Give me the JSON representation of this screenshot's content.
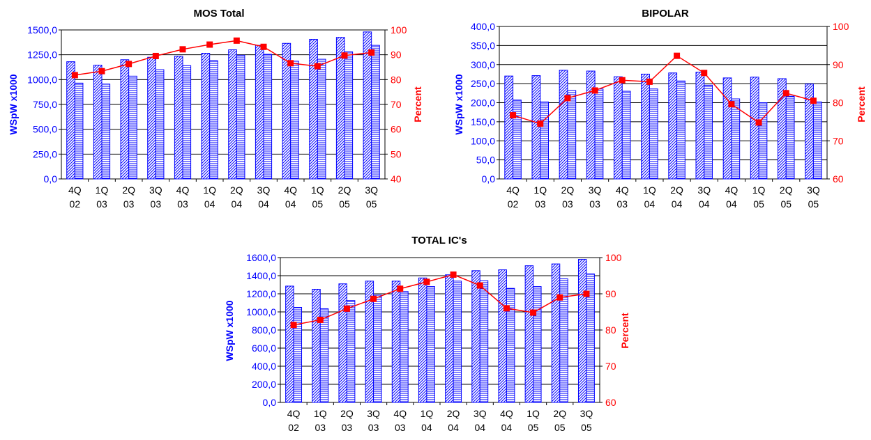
{
  "chart_data": [
    {
      "type": "bar",
      "title": "MOS Total",
      "ylabel": "WSpW x1000",
      "y2label": "Percent",
      "ylim": [
        0,
        1500
      ],
      "y2lim": [
        40,
        100
      ],
      "yticks": [
        "0,0",
        "250,0",
        "500,0",
        "750,0",
        "1000,0",
        "1250,0",
        "1500,0"
      ],
      "y2ticks": [
        "40",
        "50",
        "60",
        "70",
        "80",
        "90",
        "100"
      ],
      "categories": [
        [
          "4Q",
          "02"
        ],
        [
          "1Q",
          "03"
        ],
        [
          "2Q",
          "03"
        ],
        [
          "3Q",
          "03"
        ],
        [
          "4Q",
          "03"
        ],
        [
          "1Q",
          "04"
        ],
        [
          "2Q",
          "04"
        ],
        [
          "3Q",
          "04"
        ],
        [
          "4Q",
          "04"
        ],
        [
          "1Q",
          "05"
        ],
        [
          "2Q",
          "05"
        ],
        [
          "3Q",
          "05"
        ]
      ],
      "series": [
        {
          "kind": "bar",
          "pattern": "diagonal",
          "values": [
            1180,
            1145,
            1200,
            1225,
            1235,
            1265,
            1300,
            1345,
            1365,
            1405,
            1425,
            1480
          ]
        },
        {
          "kind": "bar",
          "pattern": "horizontal",
          "values": [
            965,
            955,
            1035,
            1100,
            1140,
            1190,
            1245,
            1255,
            1185,
            1205,
            1280,
            1345
          ]
        },
        {
          "kind": "line",
          "axis": "right",
          "values": [
            81.8,
            83.4,
            86.3,
            89.5,
            92.2,
            94.1,
            95.7,
            93.2,
            86.6,
            85.4,
            89.7,
            90.9
          ]
        }
      ],
      "grid": true,
      "colors": {
        "bar": "#0000ff",
        "line": "#ff0000"
      }
    },
    {
      "type": "bar",
      "title": "BIPOLAR",
      "ylabel": "WSpW x1000",
      "y2label": "Percent",
      "ylim": [
        0,
        400
      ],
      "y2lim": [
        60,
        100
      ],
      "yticks": [
        "0,0",
        "50,0",
        "100,0",
        "150,0",
        "200,0",
        "250,0",
        "300,0",
        "350,0",
        "400,0"
      ],
      "y2ticks": [
        "60",
        "70",
        "80",
        "90",
        "100"
      ],
      "categories": [
        [
          "4Q",
          "02"
        ],
        [
          "1Q",
          "03"
        ],
        [
          "2Q",
          "03"
        ],
        [
          "3Q",
          "03"
        ],
        [
          "4Q",
          "03"
        ],
        [
          "1Q",
          "04"
        ],
        [
          "2Q",
          "04"
        ],
        [
          "3Q",
          "04"
        ],
        [
          "4Q",
          "04"
        ],
        [
          "1Q",
          "05"
        ],
        [
          "2Q",
          "05"
        ],
        [
          "3Q",
          "05"
        ]
      ],
      "series": [
        {
          "kind": "bar",
          "pattern": "diagonal",
          "values": [
            270,
            271,
            285,
            283,
            268,
            275,
            278,
            280,
            265,
            267,
            263,
            249
          ]
        },
        {
          "kind": "bar",
          "pattern": "horizontal",
          "values": [
            207,
            202,
            232,
            236,
            230,
            236,
            257,
            246,
            210,
            200,
            217,
            202
          ]
        },
        {
          "kind": "line",
          "axis": "right",
          "values": [
            76.7,
            74.5,
            81.2,
            83.2,
            85.9,
            85.5,
            92.3,
            87.8,
            79.6,
            74.8,
            82.5,
            80.5
          ]
        }
      ],
      "grid": true,
      "colors": {
        "bar": "#0000ff",
        "line": "#ff0000"
      }
    },
    {
      "type": "bar",
      "title": "TOTAL IC's",
      "ylabel": "WSpW x1000",
      "y2label": "Percent",
      "ylim": [
        0,
        1600
      ],
      "y2lim": [
        60,
        100
      ],
      "yticks": [
        "0,0",
        "200,0",
        "400,0",
        "600,0",
        "800,0",
        "1000,0",
        "1200,0",
        "1400,0",
        "1600,0"
      ],
      "y2ticks": [
        "60",
        "70",
        "80",
        "90",
        "100"
      ],
      "categories": [
        [
          "4Q",
          "02"
        ],
        [
          "1Q",
          "03"
        ],
        [
          "2Q",
          "03"
        ],
        [
          "3Q",
          "03"
        ],
        [
          "4Q",
          "03"
        ],
        [
          "1Q",
          "04"
        ],
        [
          "2Q",
          "04"
        ],
        [
          "3Q",
          "04"
        ],
        [
          "4Q",
          "04"
        ],
        [
          "1Q",
          "05"
        ],
        [
          "2Q",
          "05"
        ],
        [
          "3Q",
          "05"
        ]
      ],
      "series": [
        {
          "kind": "bar",
          "pattern": "diagonal",
          "values": [
            1285,
            1250,
            1310,
            1340,
            1340,
            1375,
            1410,
            1455,
            1465,
            1510,
            1530,
            1580
          ]
        },
        {
          "kind": "bar",
          "pattern": "horizontal",
          "values": [
            1050,
            1035,
            1125,
            1185,
            1225,
            1280,
            1340,
            1345,
            1260,
            1280,
            1365,
            1420
          ]
        },
        {
          "kind": "line",
          "axis": "right",
          "values": [
            81.4,
            82.8,
            85.9,
            88.6,
            91.4,
            93.3,
            95.3,
            92.3,
            86.0,
            84.8,
            89.0,
            90.0
          ]
        }
      ],
      "grid": true,
      "colors": {
        "bar": "#0000ff",
        "line": "#ff0000"
      }
    }
  ]
}
